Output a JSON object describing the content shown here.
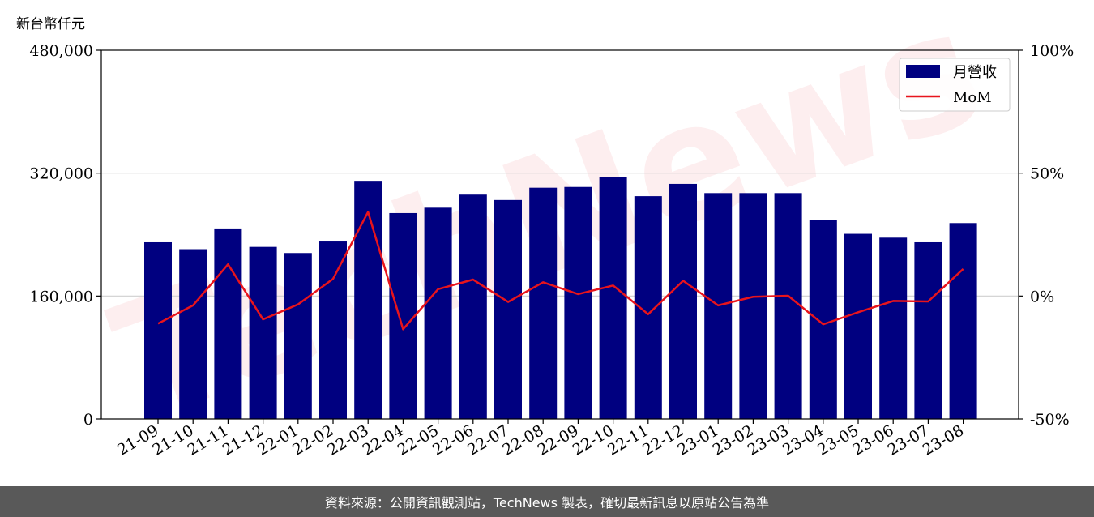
{
  "chart_data": {
    "type": "bar",
    "y_unit_label": "新台幣仟元",
    "categories": [
      "21-09",
      "21-10",
      "21-11",
      "21-12",
      "22-01",
      "22-02",
      "22-03",
      "22-04",
      "22-05",
      "22-06",
      "22-07",
      "22-08",
      "22-09",
      "22-10",
      "22-11",
      "22-12",
      "23-01",
      "23-02",
      "23-03",
      "23-04",
      "23-05",
      "23-06",
      "23-07",
      "23-08"
    ],
    "series": [
      {
        "name": "月營收",
        "axis": "left",
        "kind": "bar",
        "color": "#000080",
        "values": [
          230000,
          221000,
          248000,
          224000,
          216000,
          231000,
          310000,
          268000,
          275000,
          292000,
          285000,
          301000,
          302000,
          315000,
          290000,
          306000,
          294000,
          294000,
          294000,
          259000,
          241000,
          236000,
          230000,
          255000
        ]
      },
      {
        "name": "MoM",
        "axis": "right",
        "kind": "line",
        "color": "#e8141c",
        "values": [
          -11.2,
          -3.8,
          12.9,
          -9.5,
          -3.4,
          7.0,
          34.2,
          -13.5,
          2.8,
          6.7,
          -2.4,
          5.6,
          0.8,
          4.3,
          -7.4,
          6.2,
          -3.8,
          -0.3,
          0.1,
          -11.5,
          -6.6,
          -2.0,
          -2.2,
          11.0
        ]
      }
    ],
    "y_left": {
      "min": 0,
      "max": 480000,
      "ticks": [
        0,
        160000,
        320000,
        480000
      ],
      "tick_labels": [
        "0",
        "160,000",
        "320,000",
        "480,000"
      ]
    },
    "y_right": {
      "min": -50,
      "max": 100,
      "ticks": [
        -50,
        0,
        50,
        100
      ],
      "tick_labels": [
        "-50%",
        "0%",
        "50%",
        "100%"
      ]
    },
    "grid": "horizontal",
    "legend_position": "top-right"
  },
  "watermark": "TechNews",
  "footer": {
    "text": "資料來源：公開資訊觀測站，TechNews 製表，確切最新訊息以原站公告為準"
  }
}
